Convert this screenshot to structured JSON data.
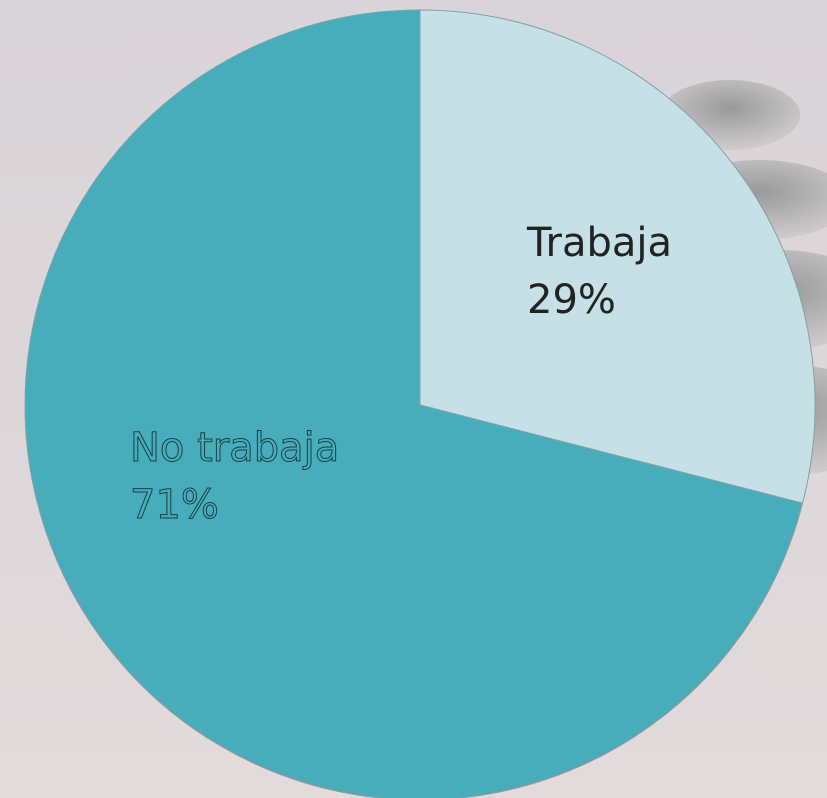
{
  "chart_data": {
    "type": "pie",
    "categories": [
      "Trabaja",
      "No trabaja"
    ],
    "values": [
      29,
      71
    ],
    "value_labels": [
      "29%",
      "71%"
    ],
    "colors": [
      "#c5e1e6",
      "#48adbb"
    ]
  }
}
